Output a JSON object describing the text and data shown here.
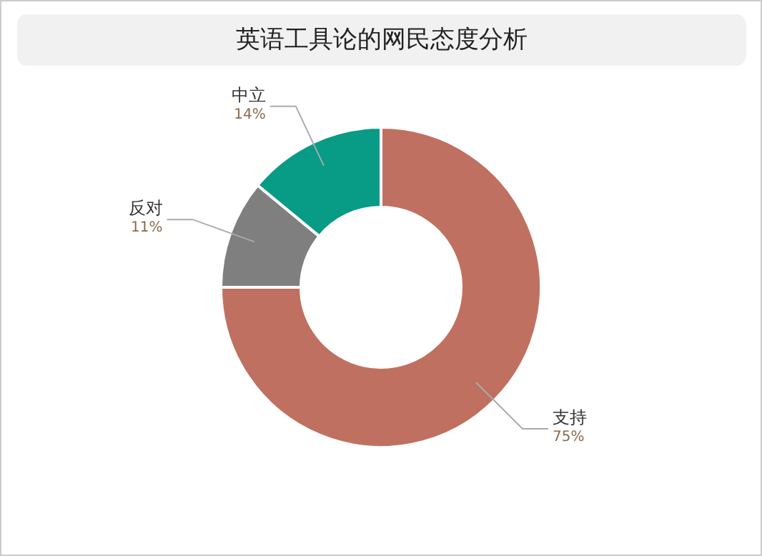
{
  "chart_data": {
    "type": "donut",
    "title": "英语工具论的网民态度分析",
    "categories": [
      "支持",
      "反对",
      "中立"
    ],
    "values": [
      75,
      11,
      14
    ],
    "colors": [
      "#c07060",
      "#7f7f7f",
      "#089b85"
    ],
    "value_labels": [
      "75%",
      "11%",
      "14%"
    ],
    "legend": false
  }
}
